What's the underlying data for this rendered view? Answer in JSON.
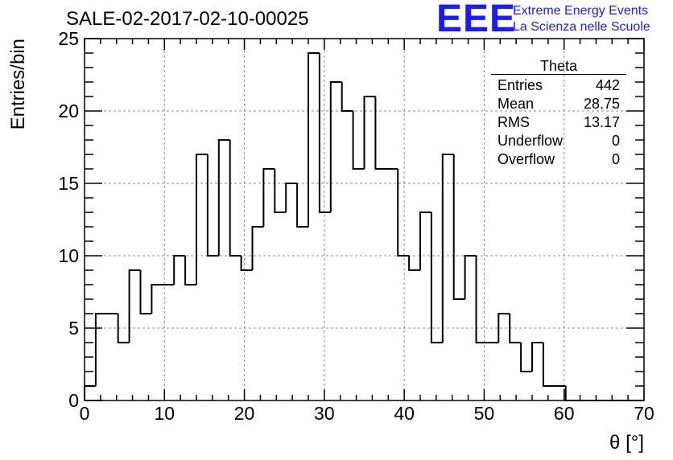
{
  "title": "SALE-02-2017-02-10-00025",
  "logo": {
    "letters": "EEE",
    "line1": "Extreme Energy Events",
    "line2": "La Scienza nelle Scuole",
    "color": "#1a1aff"
  },
  "stats_box": {
    "title": "Theta",
    "rows": [
      {
        "label": "Entries",
        "value": "442"
      },
      {
        "label": "Mean",
        "value": "28.75"
      },
      {
        "label": "RMS",
        "value": "13.17"
      },
      {
        "label": "Underflow",
        "value": "0"
      },
      {
        "label": "Overflow",
        "value": "0"
      }
    ]
  },
  "chart_data": {
    "type": "bar",
    "style": "step-histogram",
    "title": "SALE-02-2017-02-10-00025",
    "xlabel": "θ [°]",
    "ylabel": "Entries/bin",
    "xlim": [
      0,
      70
    ],
    "ylim": [
      0,
      25
    ],
    "bin_width": 1.4,
    "bin_edges_start": 0,
    "values": [
      1,
      6,
      6,
      4,
      9,
      6,
      8,
      8,
      10,
      8,
      17,
      10,
      18,
      10,
      9,
      12,
      16,
      13,
      15,
      12,
      24,
      13,
      22,
      20,
      16,
      21,
      16,
      16,
      10,
      9,
      13,
      4,
      17,
      7,
      10,
      4,
      4,
      6,
      4,
      2,
      4,
      1,
      1,
      0,
      0,
      0,
      0,
      0,
      0,
      0
    ],
    "x_ticks": [
      0,
      10,
      20,
      30,
      40,
      50,
      60,
      70
    ],
    "y_ticks": [
      0,
      5,
      10,
      15,
      20,
      25
    ],
    "grid": true,
    "legend": "none",
    "line_color": "#000000"
  }
}
